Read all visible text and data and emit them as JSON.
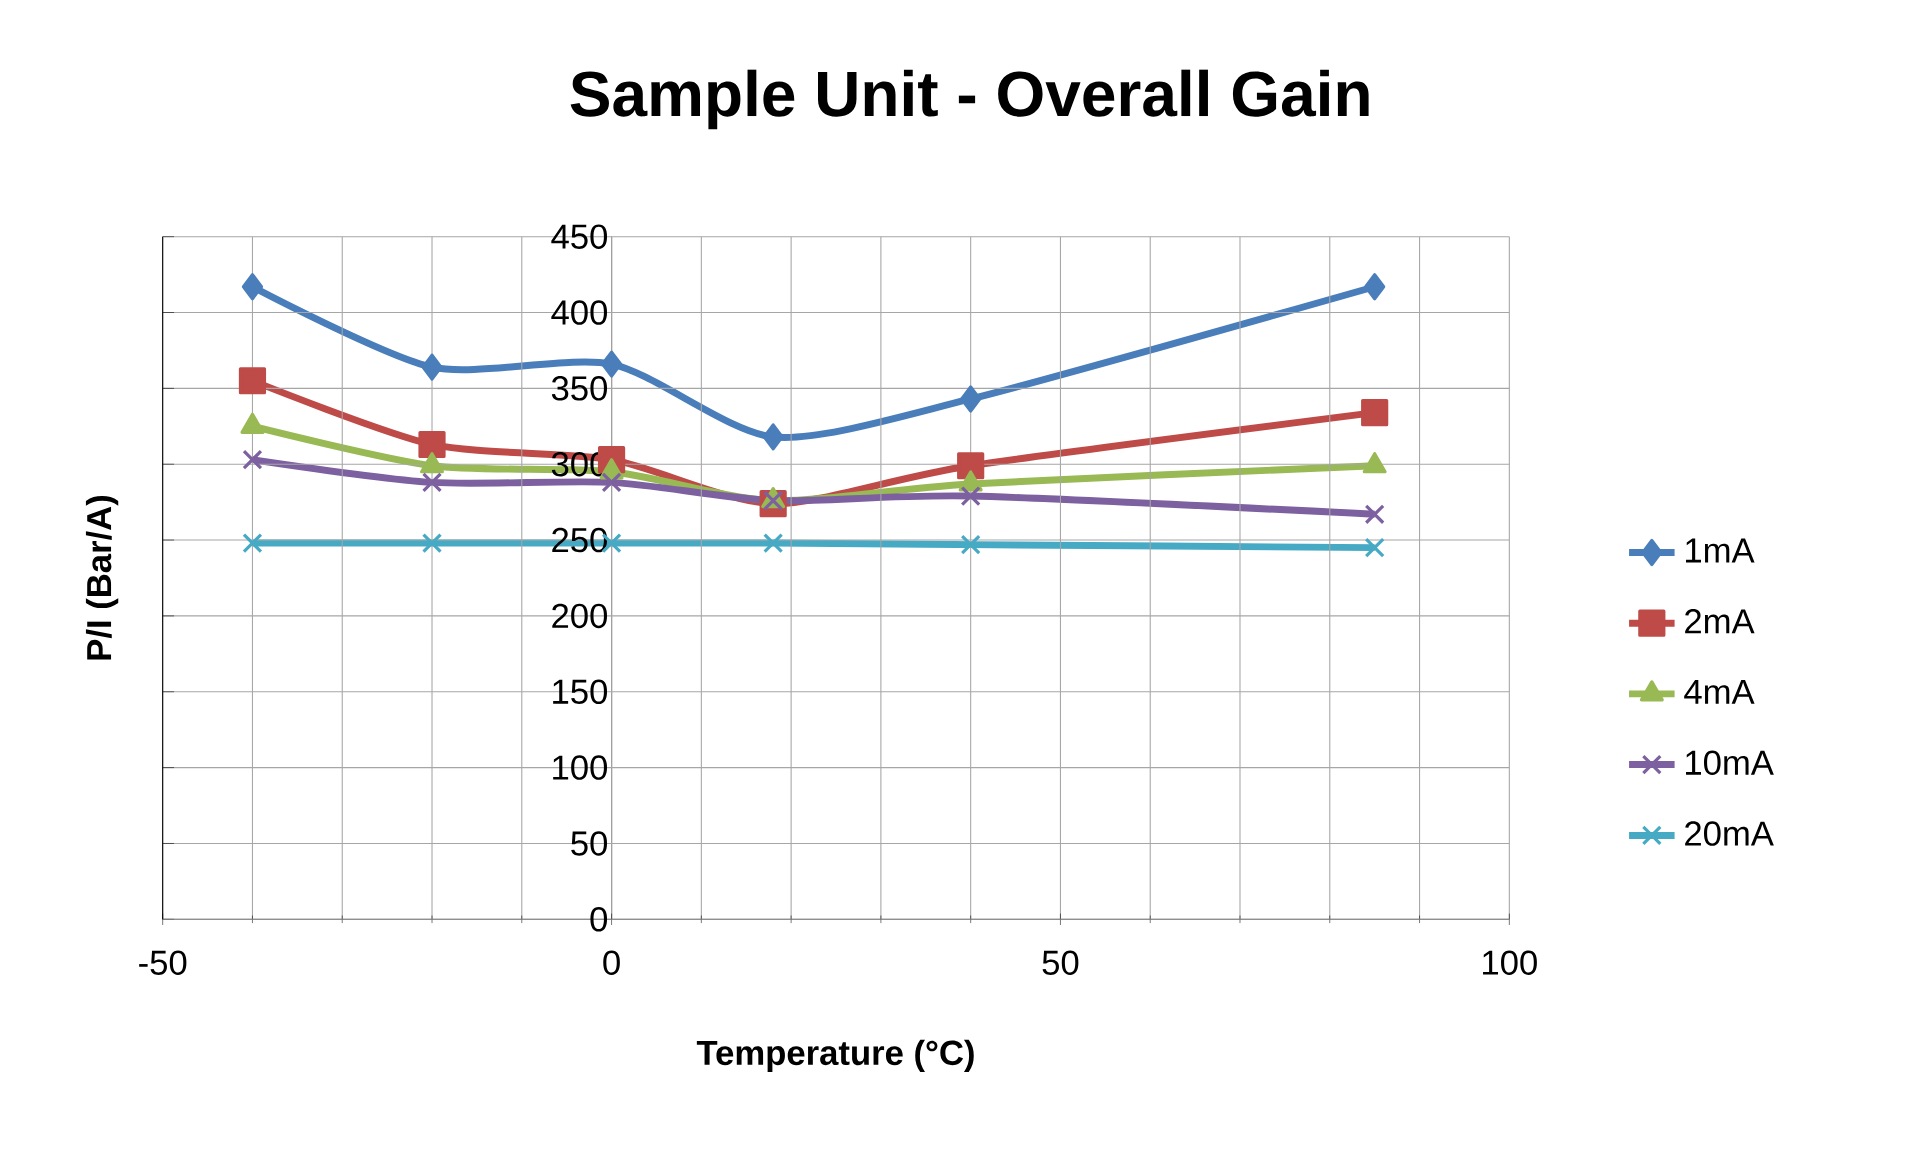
{
  "chart_data": {
    "type": "line",
    "title": "Sample Unit - Overall Gain",
    "xlabel": "Temperature (°C)",
    "ylabel": "P/I (Bar/A)",
    "x": [
      -40,
      -20,
      0,
      18,
      40,
      85
    ],
    "series": [
      {
        "name": "1mA",
        "color": "#4a7ebb",
        "marker": "diamond",
        "values": [
          417,
          364,
          366,
          318,
          343,
          417
        ]
      },
      {
        "name": "2mA",
        "color": "#be4b48",
        "marker": "square",
        "values": [
          355,
          313,
          303,
          274,
          299,
          334
        ]
      },
      {
        "name": "4mA",
        "color": "#98b954",
        "marker": "triangle",
        "values": [
          325,
          299,
          295,
          276,
          287,
          299
        ]
      },
      {
        "name": "10mA",
        "color": "#7d60a0",
        "marker": "cross",
        "values": [
          303,
          288,
          288,
          276,
          279,
          267
        ]
      },
      {
        "name": "20mA",
        "color": "#46aac5",
        "marker": "cross",
        "values": [
          248,
          248,
          248,
          248,
          247,
          245
        ]
      }
    ],
    "xlim": [
      -50,
      100
    ],
    "xticks": [
      -50,
      0,
      50,
      100
    ],
    "ylim": [
      0,
      450
    ],
    "yticks": [
      0,
      50,
      100,
      150,
      200,
      250,
      300,
      350,
      400,
      450
    ],
    "grid": true,
    "legend": "right",
    "line_style": "solid"
  }
}
